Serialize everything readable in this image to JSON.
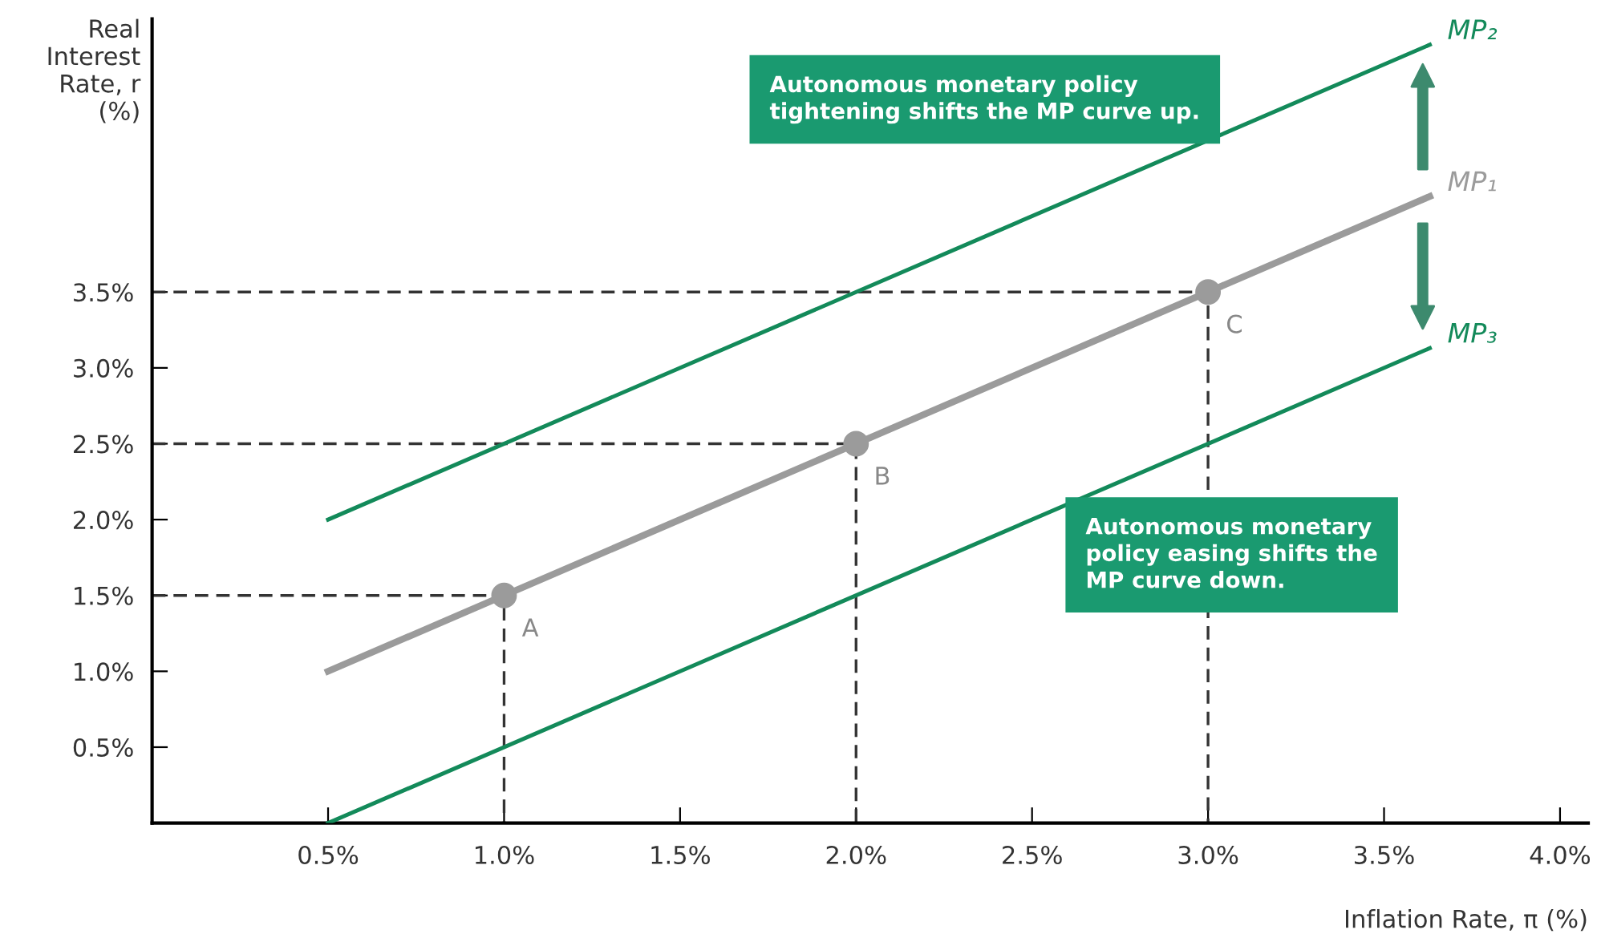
{
  "chart_data": {
    "type": "line",
    "xlabel": "Inflation Rate, π (%)",
    "ylabel": "Real\nInterest\nRate, r\n(%)",
    "xlim": [
      0,
      4.08
    ],
    "ylim": [
      0,
      5.3
    ],
    "xticks": [
      {
        "value": 0.5,
        "label": "0.5%"
      },
      {
        "value": 1.0,
        "label": "1.0%"
      },
      {
        "value": 1.5,
        "label": "1.5%"
      },
      {
        "value": 2.0,
        "label": "2.0%"
      },
      {
        "value": 2.5,
        "label": "2.5%"
      },
      {
        "value": 3.0,
        "label": "3.0%"
      },
      {
        "value": 3.5,
        "label": "3.5%"
      },
      {
        "value": 4.0,
        "label": "4.0%"
      }
    ],
    "yticks": [
      {
        "value": 0.5,
        "label": "0.5%"
      },
      {
        "value": 1.0,
        "label": "1.0%"
      },
      {
        "value": 1.5,
        "label": "1.5%"
      },
      {
        "value": 2.0,
        "label": "2.0%"
      },
      {
        "value": 2.5,
        "label": "2.5%"
      },
      {
        "value": 3.0,
        "label": "3.0%"
      },
      {
        "value": 3.5,
        "label": "3.5%"
      }
    ],
    "grid": false,
    "legend": false,
    "line_style": "solid",
    "marker": "none",
    "series": [
      {
        "type": "line",
        "line_style": "dashed",
        "color": "#333333",
        "x": [
          0,
          1,
          1
        ],
        "values": [
          1.5,
          1.5,
          0
        ]
      },
      {
        "type": "line",
        "line_style": "dashed",
        "color": "#333333",
        "x": [
          0,
          2,
          2
        ],
        "values": [
          2.5,
          2.5,
          0
        ]
      },
      {
        "type": "line",
        "line_style": "dashed",
        "color": "#333333",
        "x": [
          0,
          3,
          3
        ],
        "values": [
          3.5,
          3.5,
          0
        ]
      },
      {
        "name": "MP₂",
        "color": "#138a5a",
        "x": [
          0.5,
          3.63
        ],
        "values": [
          2.0,
          5.13
        ]
      },
      {
        "name": "MP₁",
        "color": "#9b9b9b",
        "x": [
          0.5,
          3.63
        ],
        "values": [
          1.0,
          4.13
        ]
      },
      {
        "name": "MP₃",
        "color": "#138a5a",
        "x": [
          0.5,
          3.63
        ],
        "values": [
          0.0,
          3.13
        ]
      },
      {
        "type": "scatter",
        "marker": "circle",
        "color": "#9b9b9b",
        "x": [
          1,
          2,
          3
        ],
        "values": [
          1.5,
          2.5,
          3.5
        ]
      }
    ],
    "annotations": [
      {
        "text": "A",
        "x": 1,
        "y": 1.5
      },
      {
        "text": "B",
        "x": 2,
        "y": 2.5
      },
      {
        "text": "C",
        "x": 3,
        "y": 3.5
      },
      "Autonomous monetary policy\ntightening shifts the MP curve up.",
      "Autonomous monetary\npolicy easing shifts the\nMP curve down."
    ]
  }
}
